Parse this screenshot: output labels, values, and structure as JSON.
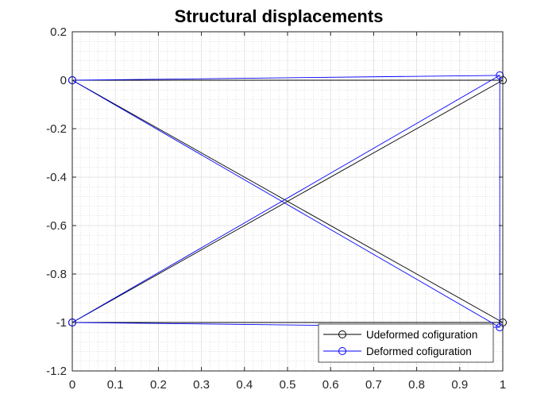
{
  "chart_data": {
    "type": "line",
    "title": "Structural displacements",
    "xlabel": "",
    "ylabel": "",
    "xlim": [
      0,
      1
    ],
    "ylim": [
      -1.2,
      0.2
    ],
    "x_ticks": [
      "0",
      "0.1",
      "0.2",
      "0.3",
      "0.4",
      "0.5",
      "0.6",
      "0.7",
      "0.8",
      "0.9",
      "1"
    ],
    "y_ticks": [
      "0.2",
      "0",
      "-0.2",
      "-0.4",
      "-0.6",
      "-0.8",
      "-1",
      "-1.2"
    ],
    "x_tick_values": [
      0,
      0.1,
      0.2,
      0.3,
      0.4,
      0.5,
      0.6,
      0.7,
      0.8,
      0.9,
      1
    ],
    "y_tick_values": [
      0.2,
      0,
      -0.2,
      -0.4,
      -0.6,
      -0.8,
      -1,
      -1.2
    ],
    "grid": true,
    "minor_grid": true,
    "legend_location": "bottom-right",
    "series": [
      {
        "name": "Udeformed cofiguration",
        "color": "#000000",
        "marker": "circle-open",
        "nodes": [
          [
            0,
            0
          ],
          [
            1,
            0
          ],
          [
            0,
            -1
          ],
          [
            1,
            -1
          ]
        ],
        "elements": [
          [
            0,
            1
          ],
          [
            0,
            2
          ],
          [
            0,
            3
          ],
          [
            1,
            2
          ],
          [
            1,
            3
          ],
          [
            2,
            3
          ]
        ]
      },
      {
        "name": "Deformed cofiguration",
        "color": "#0000ff",
        "marker": "circle-open",
        "nodes": [
          [
            0,
            0
          ],
          [
            0.993,
            0.02
          ],
          [
            0,
            -1
          ],
          [
            0.993,
            -1.02
          ]
        ],
        "elements": [
          [
            0,
            1
          ],
          [
            0,
            2
          ],
          [
            0,
            3
          ],
          [
            1,
            2
          ],
          [
            1,
            3
          ],
          [
            2,
            3
          ]
        ]
      }
    ]
  }
}
